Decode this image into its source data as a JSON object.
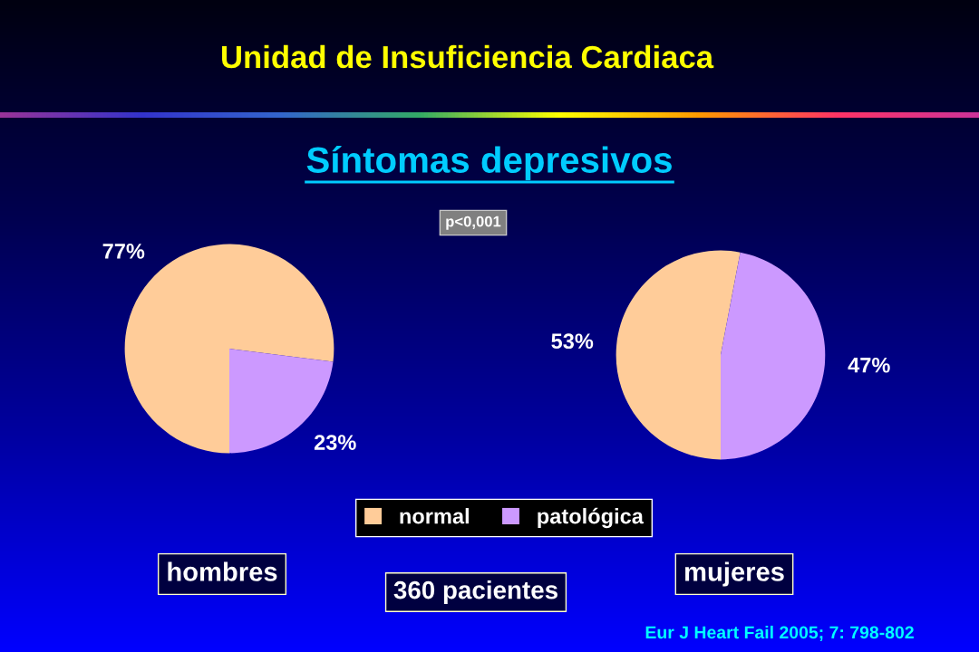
{
  "chart_data": {
    "type": "pie",
    "title": "Unidad de Insuficiencia Cardiaca",
    "subtitle": "Síntomas depresivos",
    "categories": [
      "normal",
      "patológica"
    ],
    "colors": [
      "#ffcc99",
      "#cc99ff"
    ],
    "series": [
      {
        "name": "hombres",
        "values": [
          77,
          23
        ],
        "value_labels": [
          "77%",
          "23%"
        ]
      },
      {
        "name": "mujeres",
        "values": [
          53,
          47
        ],
        "value_labels": [
          "53%",
          "47%"
        ]
      }
    ],
    "legend": "bottom",
    "annotations": [
      "p<0,001",
      "360 pacientes",
      "Eur J Heart Fail 2005; 7: 798-802"
    ]
  }
}
